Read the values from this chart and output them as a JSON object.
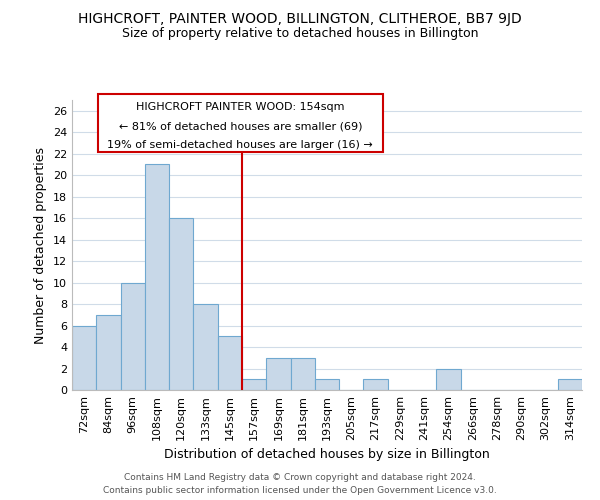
{
  "title": "HIGHCROFT, PAINTER WOOD, BILLINGTON, CLITHEROE, BB7 9JD",
  "subtitle": "Size of property relative to detached houses in Billington",
  "xlabel": "Distribution of detached houses by size in Billington",
  "ylabel": "Number of detached properties",
  "bar_color": "#c8d8e8",
  "bar_edge_color": "#6fa8d0",
  "bar_categories": [
    "72sqm",
    "84sqm",
    "96sqm",
    "108sqm",
    "120sqm",
    "133sqm",
    "145sqm",
    "157sqm",
    "169sqm",
    "181sqm",
    "193sqm",
    "205sqm",
    "217sqm",
    "229sqm",
    "241sqm",
    "254sqm",
    "266sqm",
    "278sqm",
    "290sqm",
    "302sqm",
    "314sqm"
  ],
  "bar_values": [
    6,
    7,
    10,
    21,
    16,
    8,
    5,
    1,
    3,
    3,
    1,
    0,
    1,
    0,
    0,
    2,
    0,
    0,
    0,
    0,
    1
  ],
  "vline_x_index": 7,
  "vline_color": "#cc0000",
  "ylim": [
    0,
    27
  ],
  "yticks": [
    0,
    2,
    4,
    6,
    8,
    10,
    12,
    14,
    16,
    18,
    20,
    22,
    24,
    26
  ],
  "annotation_box_title": "HIGHCROFT PAINTER WOOD: 154sqm",
  "annotation_line1": "← 81% of detached houses are smaller (69)",
  "annotation_line2": "19% of semi-detached houses are larger (16) →",
  "annotation_box_color": "#ffffff",
  "annotation_box_edge": "#cc0000",
  "footer1": "Contains HM Land Registry data © Crown copyright and database right 2024.",
  "footer2": "Contains public sector information licensed under the Open Government Licence v3.0.",
  "background_color": "#ffffff",
  "grid_color": "#d0dce8"
}
